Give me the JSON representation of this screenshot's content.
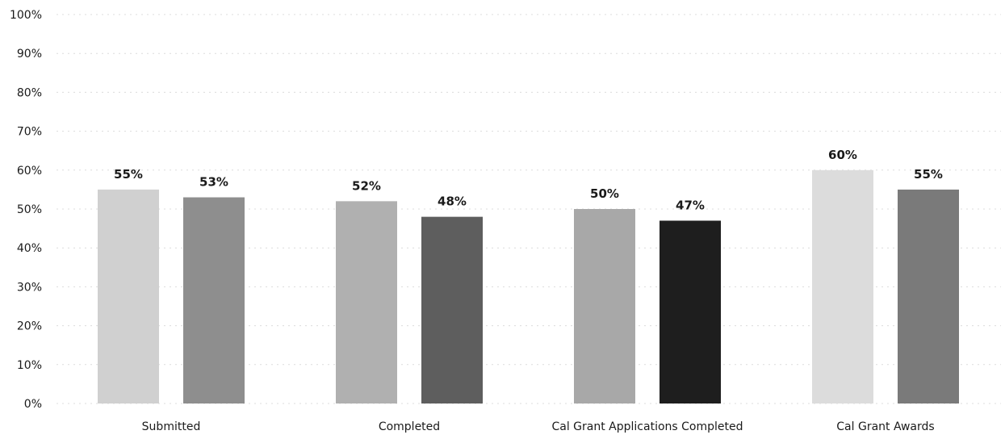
{
  "chart_data": {
    "type": "bar",
    "title": "",
    "xlabel": "",
    "ylabel": "",
    "ylim": [
      0,
      100
    ],
    "yticks": [
      0,
      10,
      20,
      30,
      40,
      50,
      60,
      70,
      80,
      90,
      100
    ],
    "ytick_format": "{v}%",
    "grid": true,
    "legend": "none",
    "categories": [
      "Submitted",
      "Completed",
      "Cal Grant Applications Completed",
      "Cal Grant Awards"
    ],
    "series": [
      {
        "values": [
          55,
          52,
          50,
          60
        ],
        "data_labels": [
          "55%",
          "52%",
          "50%",
          "60%"
        ],
        "colors": [
          "#d0d0d0",
          "#b0b0b0",
          "#a8a8a8",
          "#dcdcdc"
        ]
      },
      {
        "values": [
          53,
          48,
          47,
          55
        ],
        "data_labels": [
          "53%",
          "48%",
          "47%",
          "55%"
        ],
        "colors": [
          "#8e8e8e",
          "#5e5e5e",
          "#1e1e1e",
          "#7a7a7a"
        ]
      }
    ]
  }
}
